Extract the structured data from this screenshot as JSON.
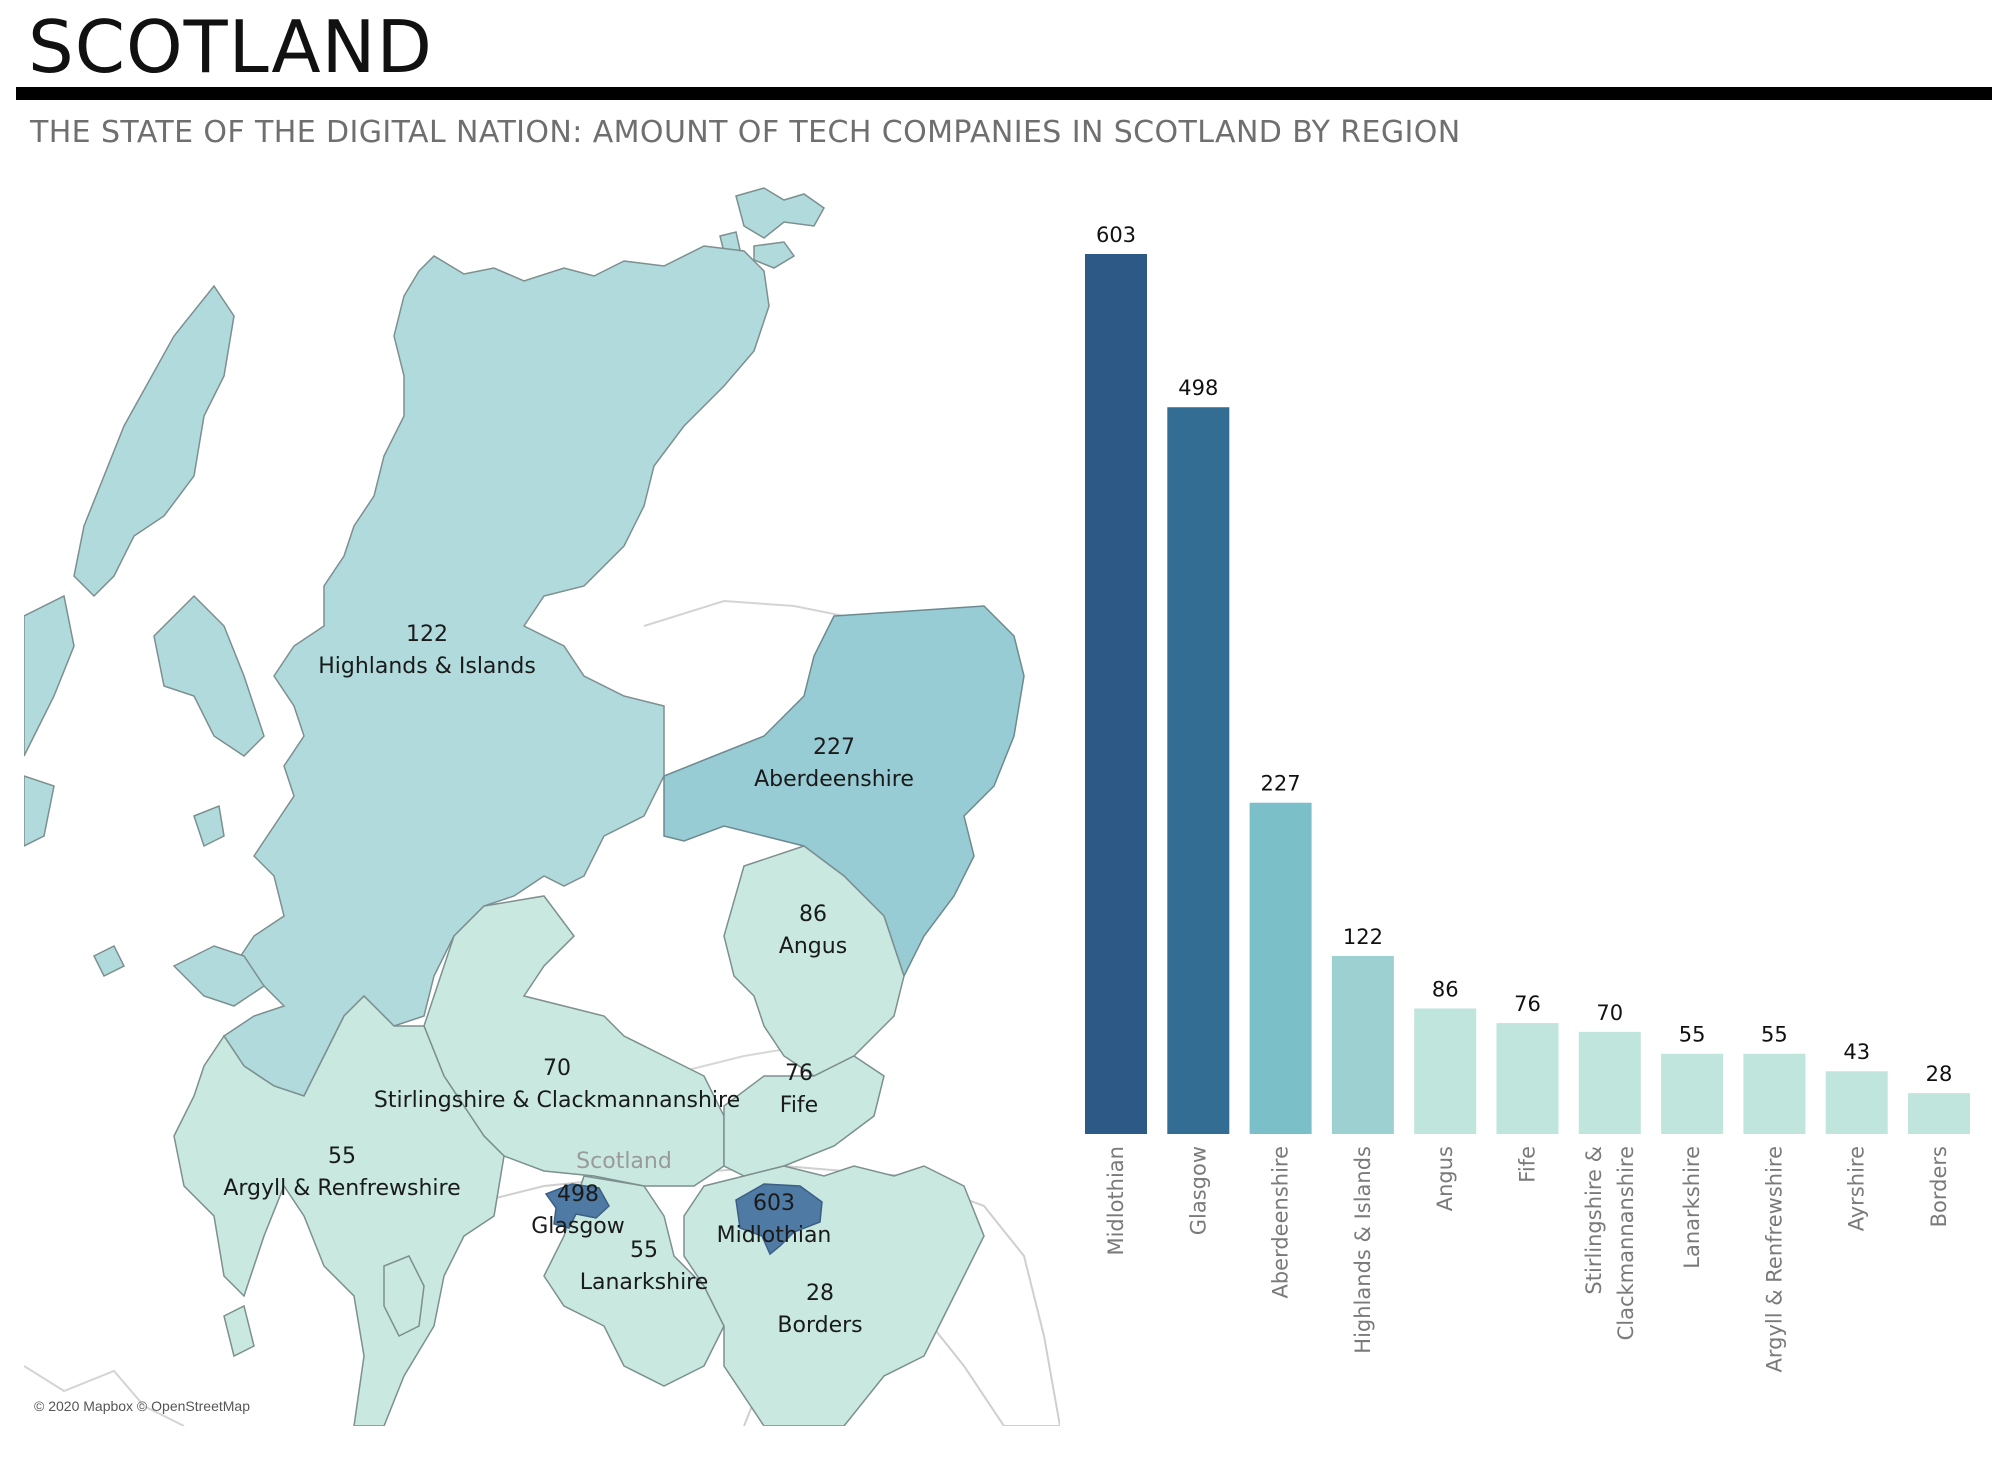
{
  "header": {
    "title": "SCOTLAND",
    "subtitle": "THE STATE OF THE DIGITAL NATION: AMOUNT OF TECH COMPANIES IN SCOTLAND BY REGION"
  },
  "map": {
    "attribution": "© 2020 Mapbox © OpenStreetMap",
    "country_label": "Scotland",
    "regions": [
      {
        "name": "Highlands & Islands",
        "value": 122,
        "color": "#b0dadc"
      },
      {
        "name": "Aberdeenshire",
        "value": 227,
        "color": "#97ccd4"
      },
      {
        "name": "Angus",
        "value": 86,
        "color": "#c8e8e0"
      },
      {
        "name": "Stirlingshire & Clackmannanshire",
        "value": 70,
        "color": "#c8e8e0"
      },
      {
        "name": "Fife",
        "value": 76,
        "color": "#c8e8e0"
      },
      {
        "name": "Argyll & Renfrewshire",
        "value": 55,
        "color": "#c8e8e0"
      },
      {
        "name": "Glasgow",
        "value": 498,
        "color": "#4f7aa3"
      },
      {
        "name": "Midlothian",
        "value": 603,
        "color": "#4f7aa3"
      },
      {
        "name": "Lanarkshire",
        "value": 55,
        "color": "#c8e8e0"
      },
      {
        "name": "Borders",
        "value": 28,
        "color": "#c8e8e0"
      }
    ]
  },
  "chart_data": {
    "type": "bar",
    "title": "THE STATE OF THE DIGITAL NATION: AMOUNT OF TECH COMPANIES IN SCOTLAND BY REGION",
    "categories": [
      "Midlothian",
      "Glasgow",
      "Aberdeenshire",
      "Highlands & Islands",
      "Angus",
      "Fife",
      "Stirlingshire & Clackmannanshire",
      "Lanarkshire",
      "Argyll & Renfrewshire",
      "Ayrshire",
      "Borders"
    ],
    "category_lines": [
      [
        "Midlothian"
      ],
      [
        "Glasgow"
      ],
      [
        "Aberdeenshire"
      ],
      [
        "Highlands & Islands"
      ],
      [
        "Angus"
      ],
      [
        "Fife"
      ],
      [
        "Stirlingshire &",
        "Clackmannanshire"
      ],
      [
        "Lanarkshire"
      ],
      [
        "Argyll & Renfrewshire"
      ],
      [
        "Ayrshire"
      ],
      [
        "Borders"
      ]
    ],
    "values": [
      603,
      498,
      227,
      122,
      86,
      76,
      70,
      55,
      55,
      43,
      28
    ],
    "colors": [
      "#2d5986",
      "#336d93",
      "#7bbfc8",
      "#9dd1d1",
      "#c0e5dc",
      "#c0e5dc",
      "#c0e5dc",
      "#c0e5dc",
      "#c0e5dc",
      "#c0e5dc",
      "#c0e5dc"
    ],
    "ylim": [
      0,
      603
    ],
    "xlabel": "",
    "ylabel": "",
    "grid": false,
    "data_labels": true
  }
}
